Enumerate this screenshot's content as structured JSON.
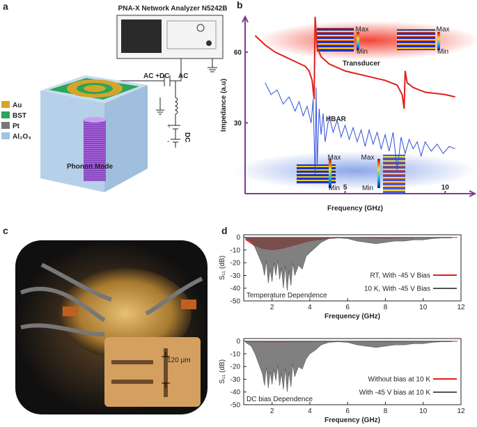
{
  "panel_labels": [
    "a",
    "b",
    "c",
    "d"
  ],
  "diagram": {
    "instrument": "PNA-X Network Analyzer N5242B",
    "ac_dc": "AC +DC",
    "ac": "AC",
    "dc": "DC",
    "battery_plus": "+",
    "battery_minus": "-",
    "mode": "Phonon Mode",
    "legend": [
      {
        "label": "Au",
        "color": "#d4a52c"
      },
      {
        "label": "BST",
        "color": "#2aa55a"
      },
      {
        "label": "Pt",
        "color": "#777777"
      },
      {
        "label": "Al₂O₃",
        "color": "#9fc3e0"
      }
    ]
  },
  "photo": {
    "scale_label": "120 μm"
  },
  "chart_data": [
    {
      "type": "line",
      "axis_label_y": "Impedance (a.u)",
      "axis_label_x": "Frequency (GHz)",
      "xlim": [
        0,
        11
      ],
      "ylim": [
        0,
        75
      ],
      "xticks": [
        5,
        10
      ],
      "yticks": [
        30,
        60
      ],
      "axis_color": "#7b3a96",
      "frame": false,
      "annotations": [
        "Max",
        "Min",
        "Max",
        "Min",
        "Max",
        "Min",
        "Max",
        "Min"
      ],
      "series": [
        {
          "name": "Transducer",
          "color": "#e0201c",
          "x": [
            0.5,
            1,
            1.5,
            2,
            2.5,
            3,
            3.2,
            3.35,
            3.45,
            3.5,
            3.6,
            3.8,
            4.2,
            5,
            6,
            7,
            7.6,
            7.85,
            7.95,
            8.0,
            8.1,
            8.4,
            9,
            10,
            10.5
          ],
          "values": [
            67,
            63,
            60,
            58,
            56,
            54,
            52,
            48,
            40,
            75,
            62,
            58,
            55,
            52,
            50,
            48,
            46,
            42,
            36,
            52,
            47,
            45,
            43,
            42,
            41
          ]
        },
        {
          "name": "HBAR",
          "color": "#2f4fd8",
          "x": [
            1.0,
            1.3,
            1.6,
            1.9,
            2.2,
            2.5,
            2.7,
            2.9,
            3.1,
            3.3,
            3.4,
            3.5,
            3.55,
            3.6,
            3.7,
            3.8,
            3.9,
            4.0,
            4.2,
            4.4,
            4.6,
            4.8,
            5.0,
            5.2,
            5.4,
            5.6,
            5.8,
            6.0,
            6.2,
            6.4,
            6.6,
            6.8,
            7.0,
            7.2,
            7.4,
            7.6,
            7.8,
            8.0,
            8.2,
            8.4,
            8.6,
            8.8,
            9.0,
            9.3,
            9.6,
            9.9,
            10.2,
            10.5
          ],
          "values": [
            47,
            42,
            44,
            38,
            41,
            35,
            39,
            33,
            37,
            30,
            40,
            8,
            45,
            12,
            36,
            25,
            34,
            22,
            33,
            26,
            31,
            24,
            29,
            23,
            28,
            22,
            27,
            20,
            27,
            21,
            26,
            19,
            25,
            18,
            26,
            10,
            24,
            17,
            23,
            19,
            22,
            16,
            22,
            18,
            21,
            17,
            20,
            19
          ]
        }
      ]
    },
    {
      "type": "area",
      "axis_label_y": "S₁₁ (dB)",
      "axis_label_x": "Frequency (GHz)",
      "xlim": [
        0.5,
        12
      ],
      "ylim": [
        -50,
        2
      ],
      "xticks": [
        2,
        4,
        6,
        8,
        10,
        12
      ],
      "yticks": [
        0,
        -10,
        -20,
        -30,
        -40,
        -50
      ],
      "axis_color": "#222222",
      "frame": true,
      "annotation": "Temperature Dependence",
      "series": [
        {
          "name": "RT, With -45 V Bias",
          "color": "#e0201c",
          "x": [
            0.6,
            1,
            1.5,
            2,
            2.5,
            3,
            3.5,
            4,
            4.5,
            5,
            5.5,
            6,
            7,
            8,
            9,
            10,
            11,
            11.8
          ],
          "values": [
            -2,
            -6,
            -9,
            -10,
            -9,
            -7,
            -5,
            -3,
            -2,
            -1,
            -0.5,
            -0.3,
            -0.5,
            -0.8,
            -0.5,
            -0.3,
            -0.2,
            -0.2
          ]
        },
        {
          "name": "10 K, With -45 V Bias",
          "color": "#555555",
          "x": [
            0.6,
            0.9,
            1.1,
            1.3,
            1.5,
            1.6,
            1.7,
            1.8,
            1.9,
            2.0,
            2.1,
            2.2,
            2.3,
            2.4,
            2.5,
            2.6,
            2.7,
            2.8,
            2.9,
            3.0,
            3.1,
            3.2,
            3.4,
            3.6,
            3.8,
            4.0,
            4.3,
            4.6,
            5.0,
            5.5,
            6.0,
            6.5,
            7.0,
            7.5,
            8.0,
            8.5,
            9.0,
            9.5,
            10.0,
            10.5,
            11.0,
            11.5
          ],
          "values": [
            -1,
            -3,
            -8,
            -15,
            -22,
            -30,
            -18,
            -36,
            -25,
            -35,
            -20,
            -30,
            -18,
            -33,
            -24,
            -40,
            -22,
            -42,
            -26,
            -38,
            -20,
            -30,
            -22,
            -25,
            -15,
            -12,
            -8,
            -4,
            -1,
            -0.5,
            -1,
            -3,
            -4,
            -5,
            -4,
            -3,
            -3,
            -2,
            -2,
            -1,
            -0.5,
            -0.5
          ]
        }
      ]
    },
    {
      "type": "area",
      "axis_label_y": "S₁₁ (dB)",
      "axis_label_x": "Frequency (GHz)",
      "xlim": [
        0.5,
        12
      ],
      "ylim": [
        -50,
        2
      ],
      "xticks": [
        2,
        4,
        6,
        8,
        10,
        12
      ],
      "yticks": [
        0,
        -10,
        -20,
        -30,
        -40,
        -50
      ],
      "axis_color": "#222222",
      "frame": true,
      "annotation": "DC bias Dependence",
      "series": [
        {
          "name": "Without bias at 10 K",
          "color": "#e0201c",
          "x": [
            0.6,
            2,
            4,
            6,
            8,
            10,
            11.8
          ],
          "values": [
            -0.5,
            -0.8,
            -0.5,
            -0.3,
            -0.5,
            -0.3,
            -0.3
          ]
        },
        {
          "name": "With -45 V bias at 10 K",
          "color": "#555555",
          "x": [
            0.6,
            0.9,
            1.1,
            1.3,
            1.5,
            1.6,
            1.7,
            1.8,
            1.9,
            2.0,
            2.1,
            2.2,
            2.3,
            2.4,
            2.5,
            2.6,
            2.7,
            2.8,
            2.9,
            3.0,
            3.1,
            3.2,
            3.4,
            3.6,
            3.8,
            4.0,
            4.3,
            4.6,
            5.0,
            5.5,
            6.0,
            6.5,
            7.0,
            7.5,
            8.0,
            8.5,
            9.0,
            9.5,
            10.0,
            10.5,
            11.0,
            11.5
          ],
          "values": [
            -1,
            -4,
            -10,
            -18,
            -26,
            -35,
            -20,
            -37,
            -24,
            -34,
            -22,
            -31,
            -19,
            -35,
            -25,
            -38,
            -21,
            -40,
            -24,
            -36,
            -18,
            -28,
            -20,
            -22,
            -14,
            -10,
            -7,
            -3,
            -1,
            -0.5,
            -1,
            -3,
            -4,
            -5,
            -4,
            -3,
            -3,
            -2,
            -2,
            -1,
            -0.5,
            -0.5
          ]
        }
      ]
    }
  ]
}
